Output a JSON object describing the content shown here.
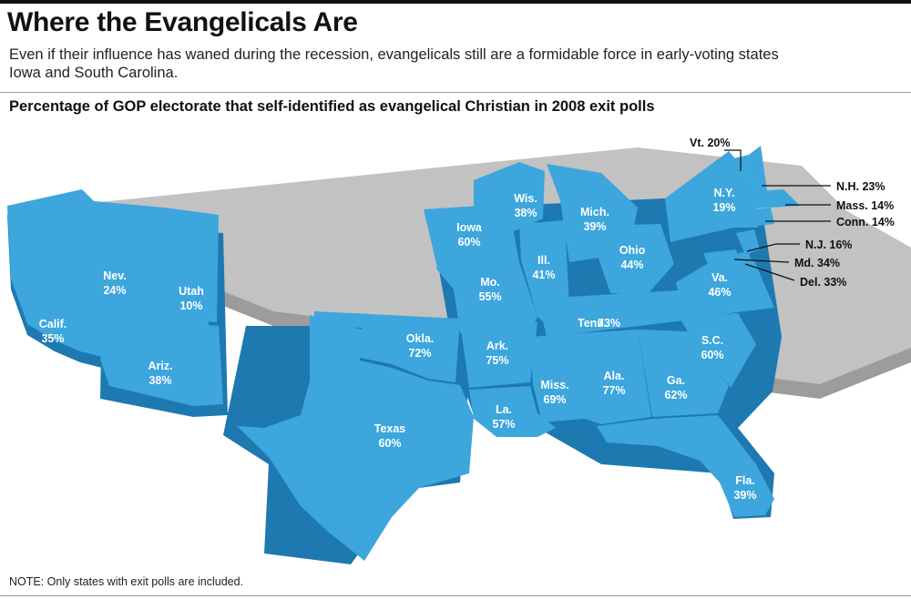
{
  "headline": "Where the Evangelicals Are",
  "dek": "Even if their influence has waned during the recession, evangelicals still are a formidable force in early-voting states Iowa and South Carolina.",
  "subhead": "Percentage of GOP electorate that self-identified as evangelical Christian in 2008 exit polls",
  "note": "NOTE: Only states with exit polls are included.",
  "colors": {
    "state_fill": "#3ca6dd",
    "state_side": "#1d79b0",
    "no_data_fill": "#c2c2c2",
    "no_data_side": "#9c9c9c"
  },
  "states": [
    {
      "id": "calif",
      "name": "Calif.",
      "value": "35%"
    },
    {
      "id": "nev",
      "name": "Nev.",
      "value": "24%"
    },
    {
      "id": "utah",
      "name": "Utah",
      "value": "10%"
    },
    {
      "id": "ariz",
      "name": "Ariz.",
      "value": "38%"
    },
    {
      "id": "okla",
      "name": "Okla.",
      "value": "72%"
    },
    {
      "id": "texas",
      "name": "Texas",
      "value": "60%"
    },
    {
      "id": "iowa",
      "name": "Iowa",
      "value": "60%"
    },
    {
      "id": "mo",
      "name": "Mo.",
      "value": "55%"
    },
    {
      "id": "ark",
      "name": "Ark.",
      "value": "75%"
    },
    {
      "id": "la",
      "name": "La.",
      "value": "57%"
    },
    {
      "id": "wis",
      "name": "Wis.",
      "value": "38%"
    },
    {
      "id": "ill",
      "name": "Ill.",
      "value": "41%"
    },
    {
      "id": "mich",
      "name": "Mich.",
      "value": "39%"
    },
    {
      "id": "ohio",
      "name": "Ohio",
      "value": "44%"
    },
    {
      "id": "tenn",
      "name": "Tenn.",
      "value": "73%"
    },
    {
      "id": "miss",
      "name": "Miss.",
      "value": "69%"
    },
    {
      "id": "ala",
      "name": "Ala.",
      "value": "77%"
    },
    {
      "id": "ga",
      "name": "Ga.",
      "value": "62%"
    },
    {
      "id": "sc",
      "name": "S.C.",
      "value": "60%"
    },
    {
      "id": "fla",
      "name": "Fla.",
      "value": "39%"
    },
    {
      "id": "va",
      "name": "Va.",
      "value": "46%"
    },
    {
      "id": "ny",
      "name": "N.Y.",
      "value": "19%"
    }
  ],
  "callouts": [
    {
      "id": "vt",
      "label": "Vt. 20%"
    },
    {
      "id": "nh",
      "label": "N.H. 23%"
    },
    {
      "id": "mass",
      "label": "Mass. 14%"
    },
    {
      "id": "conn",
      "label": "Conn. 14%"
    },
    {
      "id": "nj",
      "label": "N.J. 16%"
    },
    {
      "id": "md",
      "label": "Md. 34%"
    },
    {
      "id": "del",
      "label": "Del. 33%"
    }
  ]
}
